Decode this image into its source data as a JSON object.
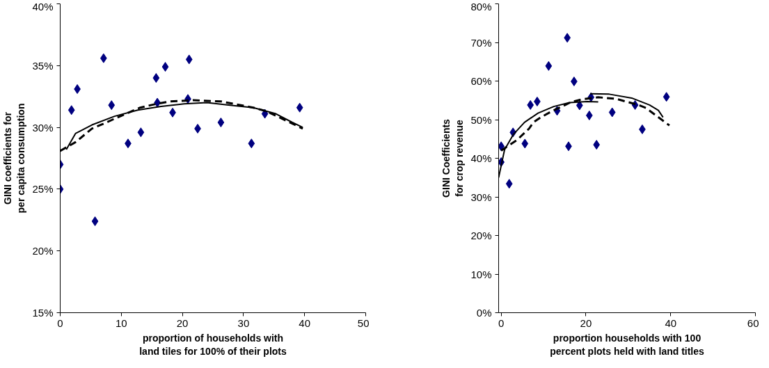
{
  "chart_data": [
    {
      "type": "scatter",
      "xlabel": "proportion of households with land tiles for 100% of their plots",
      "ylabel": "GINI coefficients for per capita consumption",
      "xlim": [
        0,
        50
      ],
      "xticks": [
        0,
        10,
        20,
        30,
        40,
        50
      ],
      "ylim": [
        15,
        40
      ],
      "yticks": [
        {
          "value": 15,
          "label": "15%"
        },
        {
          "value": 20,
          "label": "20%"
        },
        {
          "value": 25,
          "label": "25%"
        },
        {
          "value": 30,
          "label": "30%"
        },
        {
          "value": 35,
          "label": "35%"
        },
        {
          "value": 40,
          "label": "40%"
        }
      ],
      "grid": false,
      "series": [
        {
          "marker": "diamond",
          "color": "#000080",
          "x": [
            0,
            0,
            1.85,
            2.8,
            5.7,
            7.1,
            8.4,
            11.1,
            13.2,
            15.7,
            15.9,
            17.2,
            18.4,
            20.9,
            21.1,
            22.5,
            26.3,
            31.3,
            33.5,
            39.2
          ],
          "values": [
            27.0,
            25.0,
            31.4,
            33.1,
            22.4,
            35.6,
            31.8,
            28.7,
            29.6,
            34.0,
            32.0,
            34.9,
            31.2,
            32.3,
            35.5,
            29.9,
            30.4,
            28.7,
            31.1,
            31.6
          ]
        },
        {
          "type": "line",
          "marker": "none",
          "line_style": "solid",
          "color": "#000000",
          "x": [
            1,
            2.5,
            5.2,
            8.9,
            12.7,
            16.5,
            20.3,
            24,
            27.8,
            31.6,
            35.3,
            38,
            39.7
          ],
          "values": [
            28.2,
            29.5,
            30.2,
            30.9,
            31.4,
            31.7,
            31.9,
            32.0,
            31.8,
            31.6,
            31.1,
            30.4,
            30.0
          ]
        },
        {
          "type": "line",
          "marker": "none",
          "line_style": "dashed",
          "color": "#000000",
          "x": [
            0,
            2.5,
            5.2,
            7.1,
            8.9,
            11.2,
            13.1,
            15.7,
            18,
            21.8,
            26.3,
            31.6,
            33.8,
            39.7
          ],
          "values": [
            28.1,
            28.8,
            29.9,
            30.3,
            30.7,
            31.2,
            31.6,
            31.9,
            32.1,
            32.2,
            32.1,
            31.6,
            31.3,
            29.9
          ]
        }
      ]
    },
    {
      "type": "scatter",
      "xlabel": "proportion households with 100 percent plots held with land titles",
      "ylabel": "GINI Coefficients for crop revenue",
      "xlim": [
        -0.6,
        60
      ],
      "xticks": [
        0,
        20,
        40,
        60
      ],
      "ylim": [
        0,
        80
      ],
      "yticks": [
        {
          "value": 0,
          "label": "0%"
        },
        {
          "value": 10,
          "label": "10%"
        },
        {
          "value": 20,
          "label": "20%"
        },
        {
          "value": 30,
          "label": "30%"
        },
        {
          "value": 40,
          "label": "40%"
        },
        {
          "value": 50,
          "label": "50%"
        },
        {
          "value": 60,
          "label": "60%"
        },
        {
          "value": 70,
          "label": "70%"
        },
        {
          "value": 80,
          "label": "80%"
        }
      ],
      "grid": false,
      "series": [
        {
          "marker": "diamond",
          "color": "#000080",
          "x": [
            0,
            0,
            1.9,
            2.8,
            5.6,
            6.9,
            8.5,
            11.2,
            13.2,
            15.6,
            15.9,
            17.2,
            18.5,
            20.8,
            21.2,
            22.5,
            26.2,
            31.6,
            33.3,
            39.0
          ],
          "values": [
            43.1,
            39.0,
            33.4,
            46.7,
            43.8,
            53.8,
            54.7,
            63.9,
            52.3,
            71.2,
            43.1,
            59.9,
            53.7,
            51.1,
            55.8,
            43.5,
            51.9,
            53.8,
            47.5,
            55.9
          ]
        },
        {
          "type": "line",
          "marker": "none",
          "line_style": "solid",
          "color": "#000000",
          "x": [
            -0.6,
            0.8,
            2.9,
            5.5,
            8.7,
            12.4,
            16.1,
            20.3,
            22.9
          ],
          "values": [
            35.0,
            42.2,
            46.2,
            49.3,
            51.7,
            53.4,
            54.4,
            54.7,
            54.6
          ]
        },
        {
          "type": "line",
          "marker": "none",
          "line_style": "solid",
          "color": "#000000",
          "x": [
            21,
            25.5,
            30.8,
            35,
            37.1,
            38.2
          ],
          "values": [
            56.7,
            56.6,
            55.6,
            53.8,
            52.4,
            50.6
          ]
        },
        {
          "type": "line",
          "marker": "none",
          "line_style": "dashed",
          "color": "#000000",
          "x": [
            0,
            3.7,
            6.6,
            7.6,
            9.2,
            11.8,
            13.9,
            16.6,
            19.2,
            22.9,
            27.1,
            32.4,
            34.2,
            39.7
          ],
          "values": [
            42.0,
            44.7,
            47.7,
            49.3,
            50.5,
            52.1,
            53.2,
            54.6,
            55.3,
            55.8,
            55.4,
            53.8,
            53.0,
            48.5
          ]
        }
      ]
    }
  ]
}
